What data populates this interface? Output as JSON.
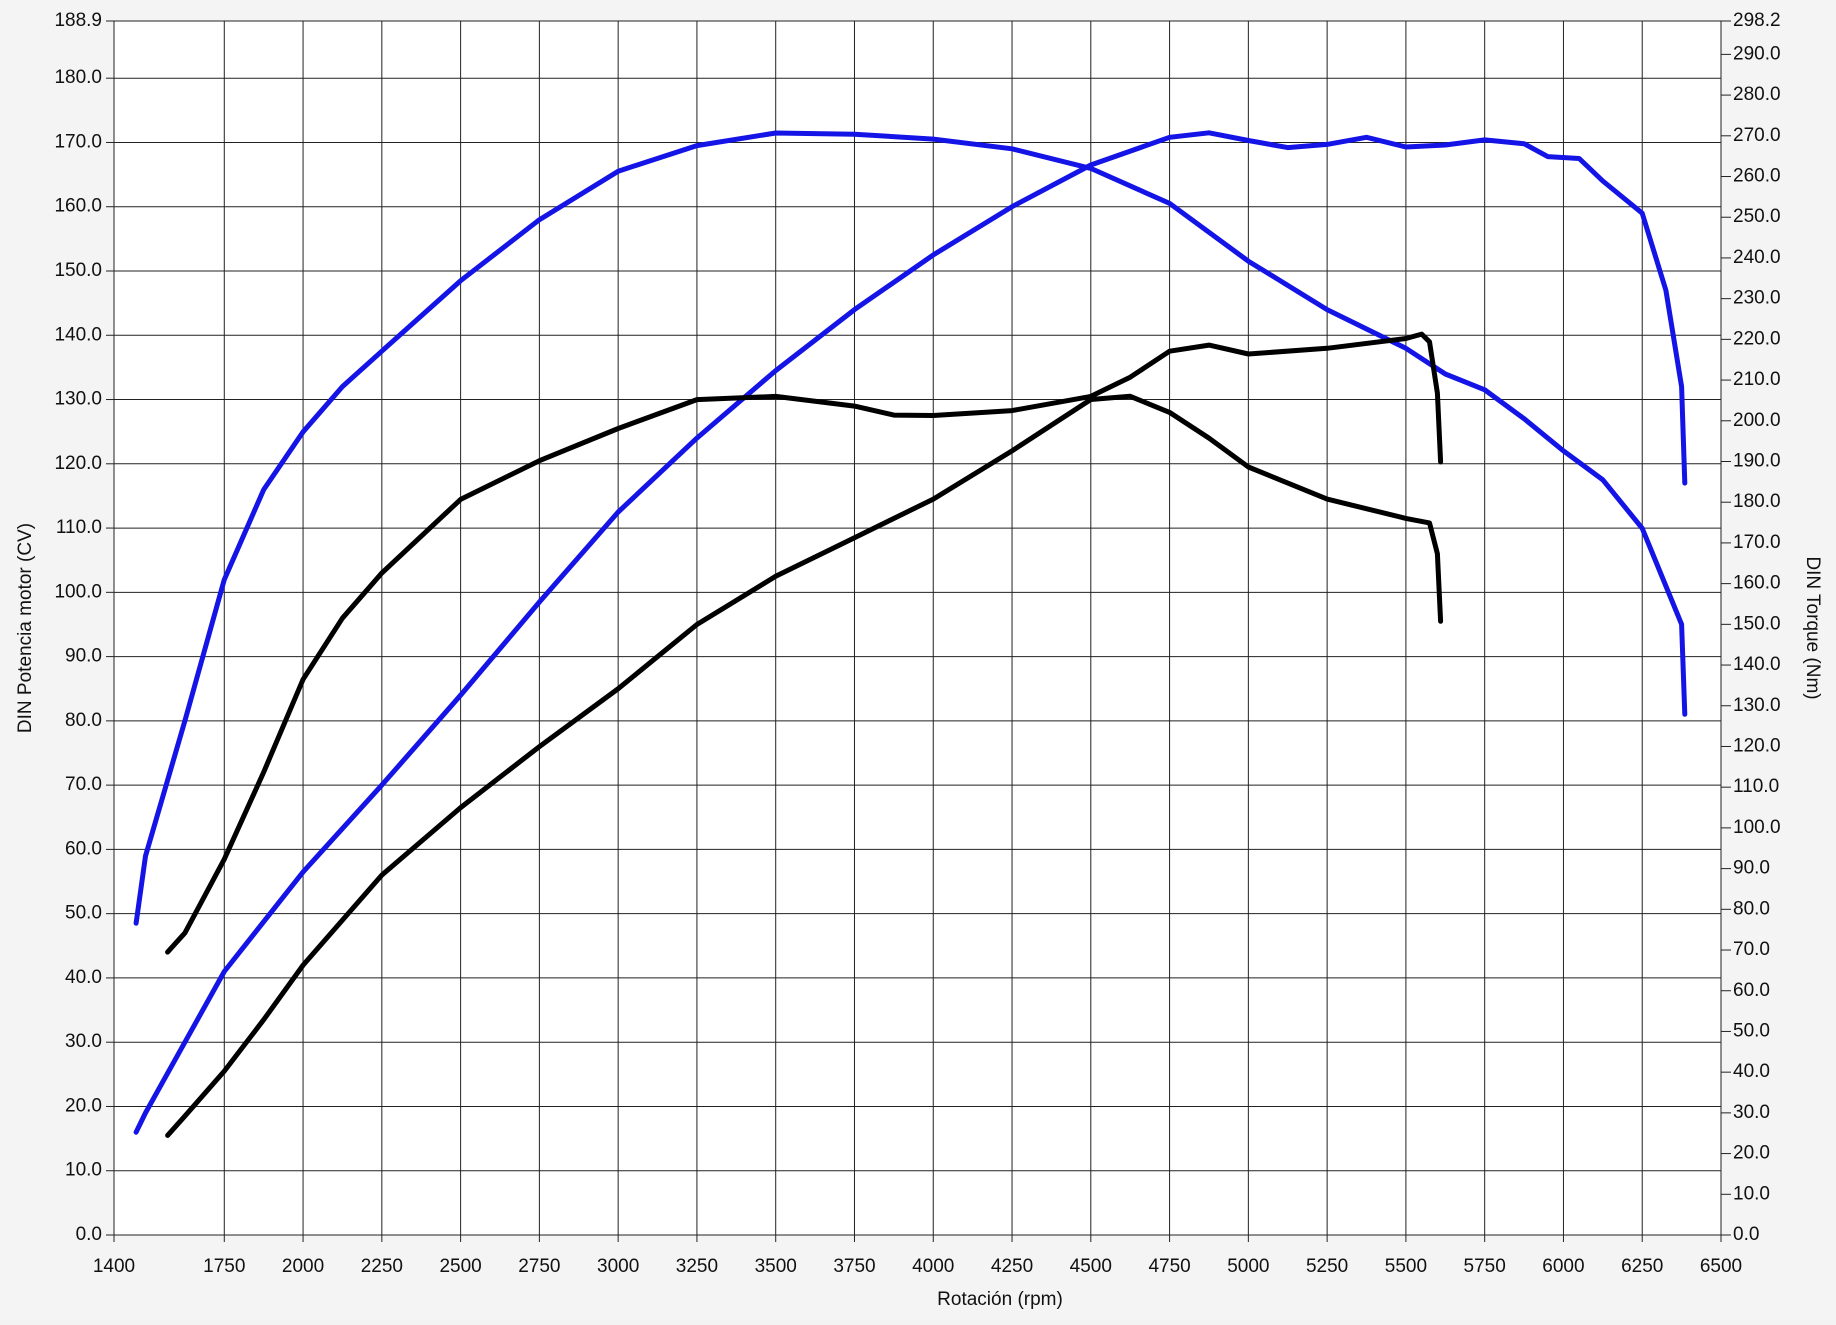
{
  "chart_data": {
    "type": "line",
    "xlabel": "Rotación (rpm)",
    "ylabel": "DIN Potencia motor (CV)",
    "y2label": "DIN Torque (Nm)",
    "xlim": [
      1400,
      6500
    ],
    "xticks": [
      1400,
      1750,
      2000,
      2250,
      2500,
      2750,
      3000,
      3250,
      3500,
      3750,
      4000,
      4250,
      4500,
      4750,
      5000,
      5250,
      5500,
      5750,
      6000,
      6250,
      6500
    ],
    "ylim": [
      0,
      188.9
    ],
    "yticks": [
      {
        "value": 0,
        "label": "0.0"
      },
      {
        "value": 10,
        "label": "10.0"
      },
      {
        "value": 20,
        "label": "20.0"
      },
      {
        "value": 30,
        "label": "30.0"
      },
      {
        "value": 40,
        "label": "40.0"
      },
      {
        "value": 50,
        "label": "50.0"
      },
      {
        "value": 60,
        "label": "60.0"
      },
      {
        "value": 70,
        "label": "70.0"
      },
      {
        "value": 80,
        "label": "80.0"
      },
      {
        "value": 90,
        "label": "90.0"
      },
      {
        "value": 100,
        "label": "100.0"
      },
      {
        "value": 110,
        "label": "110.0"
      },
      {
        "value": 120,
        "label": "120.0"
      },
      {
        "value": 130,
        "label": "130.0"
      },
      {
        "value": 140,
        "label": "140.0"
      },
      {
        "value": 150,
        "label": "150.0"
      },
      {
        "value": 160,
        "label": "160.0"
      },
      {
        "value": 170,
        "label": "170.0"
      },
      {
        "value": 180,
        "label": "180.0"
      },
      {
        "value": 188.9,
        "label": "188.9"
      }
    ],
    "y2lim": [
      0,
      298.2
    ],
    "y2ticks": [
      {
        "value": 0,
        "label": "0.0"
      },
      {
        "value": 10,
        "label": "10.0"
      },
      {
        "value": 20,
        "label": "20.0"
      },
      {
        "value": 30,
        "label": "30.0"
      },
      {
        "value": 40,
        "label": "40.0"
      },
      {
        "value": 50,
        "label": "50.0"
      },
      {
        "value": 60,
        "label": "60.0"
      },
      {
        "value": 70,
        "label": "70.0"
      },
      {
        "value": 80,
        "label": "80.0"
      },
      {
        "value": 90,
        "label": "90.0"
      },
      {
        "value": 100,
        "label": "100.0"
      },
      {
        "value": 110,
        "label": "110.0"
      },
      {
        "value": 120,
        "label": "120.0"
      },
      {
        "value": 130,
        "label": "130.0"
      },
      {
        "value": 140,
        "label": "140.0"
      },
      {
        "value": 150,
        "label": "150.0"
      },
      {
        "value": 160,
        "label": "160.0"
      },
      {
        "value": 170,
        "label": "170.0"
      },
      {
        "value": 180,
        "label": "180.0"
      },
      {
        "value": 190,
        "label": "190.0"
      },
      {
        "value": 200,
        "label": "200.0"
      },
      {
        "value": 210,
        "label": "210.0"
      },
      {
        "value": 220,
        "label": "220.0"
      },
      {
        "value": 230,
        "label": "230.0"
      },
      {
        "value": 240,
        "label": "240.0"
      },
      {
        "value": 250,
        "label": "250.0"
      },
      {
        "value": 260,
        "label": "260.0"
      },
      {
        "value": 270,
        "label": "270.0"
      },
      {
        "value": 280,
        "label": "280.0"
      },
      {
        "value": 290,
        "label": "290.0"
      },
      {
        "value": 298.2,
        "label": "298.2"
      }
    ],
    "grid": true,
    "series": [
      {
        "color": "#1414e6",
        "axis": "y2",
        "x": [
          1470,
          1500,
          1625,
          1750,
          1875,
          2000,
          2125,
          2250,
          2500,
          2750,
          3000,
          3250,
          3500,
          3750,
          4000,
          4250,
          4500,
          4750,
          5000,
          5250,
          5500,
          5625,
          5750,
          5875,
          6000,
          6125,
          6250,
          6375,
          6385
        ],
        "values": [
          76.6,
          93.1,
          126.3,
          161.0,
          183.1,
          197.3,
          208.4,
          217.1,
          234.4,
          249.4,
          261.3,
          267.6,
          270.7,
          270.4,
          269.2,
          266.8,
          262.0,
          253.4,
          239.2,
          227.3,
          217.8,
          211.5,
          207.6,
          200.5,
          192.6,
          185.5,
          173.6,
          150.0,
          127.9
        ]
      },
      {
        "color": "#1414e6",
        "x": [
          1470,
          1500,
          1625,
          1750,
          2000,
          2250,
          2500,
          2750,
          3000,
          3250,
          3500,
          3750,
          4000,
          4250,
          4500,
          4750,
          4875,
          5000,
          5125,
          5250,
          5375,
          5500,
          5625,
          5750,
          5875,
          5950,
          6050,
          6125,
          6250,
          6325,
          6375,
          6385
        ],
        "values": [
          16,
          19,
          30,
          41,
          56.5,
          70,
          84,
          98.5,
          112.5,
          124,
          134.5,
          144,
          152.5,
          160,
          166.5,
          170.8,
          171.5,
          170.3,
          169.2,
          169.7,
          170.8,
          169.3,
          169.6,
          170.4,
          169.8,
          167.8,
          167.5,
          164,
          159,
          147,
          132,
          117
        ]
      },
      {
        "color": "#000000",
        "axis": "y2",
        "x": [
          1570,
          1625,
          1750,
          1875,
          2000,
          2125,
          2250,
          2500,
          2750,
          3000,
          3250,
          3500,
          3750,
          3875,
          4000,
          4250,
          4500,
          4625,
          4750,
          4875,
          5000,
          5250,
          5500,
          5550,
          5575,
          5600,
          5610
        ],
        "values": [
          69.5,
          74.2,
          92.3,
          113.7,
          136.5,
          151.5,
          162.6,
          180.7,
          190.2,
          198.1,
          205.2,
          206.0,
          203.6,
          201.4,
          201.3,
          202.5,
          206.0,
          210.7,
          217.1,
          218.6,
          216.4,
          217.8,
          220.2,
          221.3,
          219.4,
          206.8,
          189.9
        ]
      },
      {
        "color": "#000000",
        "x": [
          1570,
          1625,
          1750,
          1875,
          2000,
          2250,
          2500,
          2750,
          3000,
          3250,
          3500,
          3750,
          4000,
          4250,
          4500,
          4625,
          4750,
          4875,
          5000,
          5250,
          5500,
          5575,
          5600,
          5610
        ],
        "values": [
          15.5,
          18.5,
          25.5,
          33.5,
          42,
          56,
          66.5,
          76,
          85,
          95,
          102.5,
          108.5,
          114.5,
          122,
          130,
          130.5,
          128,
          124,
          119.5,
          114.5,
          111.5,
          110.8,
          106,
          95.5
        ]
      }
    ]
  }
}
